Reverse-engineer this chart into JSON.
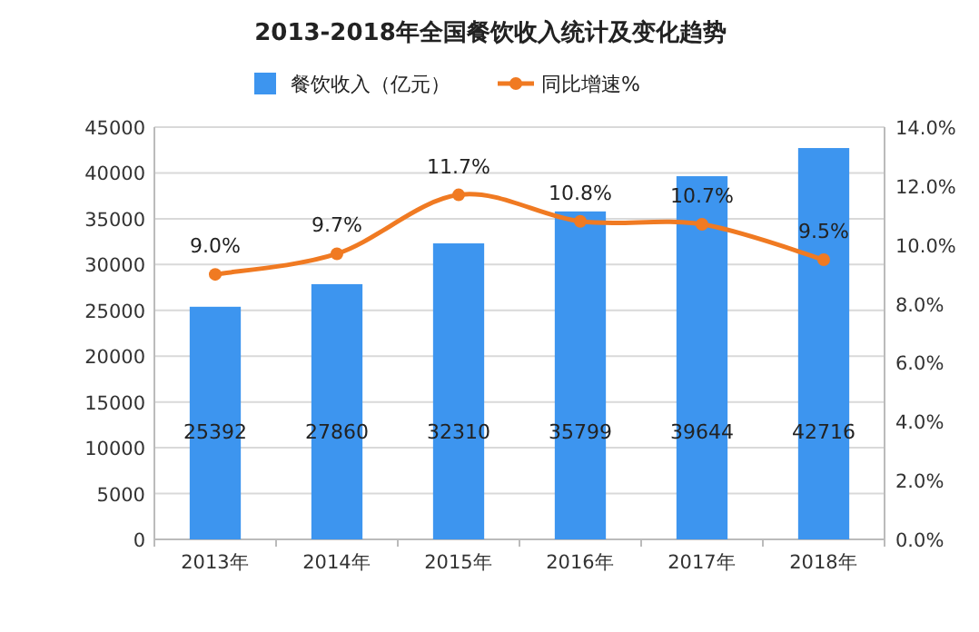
{
  "chart_data": {
    "type": "bar",
    "title": "2013-2018年全国餐饮收入统计及变化趋势",
    "categories": [
      "2013年",
      "2014年",
      "2015年",
      "2016年",
      "2017年",
      "2018年"
    ],
    "series": [
      {
        "name": "餐饮收入（亿元）",
        "color": "#3d95ef",
        "values": [
          25392,
          27860,
          32310,
          35799,
          39644,
          42716
        ],
        "value_labels": [
          "25392",
          "27860",
          "32310",
          "35799",
          "39644",
          "42716"
        ]
      },
      {
        "name": "同比增速%",
        "type": "line",
        "axis": "y2",
        "color": "#f07a22",
        "values": [
          9.0,
          9.7,
          11.7,
          10.8,
          10.7,
          9.5
        ],
        "value_labels": [
          "9.0%",
          "9.7%",
          "11.7%",
          "10.8%",
          "10.7%",
          "9.5%"
        ]
      }
    ],
    "ylim": [
      0,
      45000
    ],
    "yticks": [
      0,
      5000,
      10000,
      15000,
      20000,
      25000,
      30000,
      35000,
      40000,
      45000
    ],
    "y2lim": [
      0,
      14
    ],
    "y2ticks": [
      {
        "value": 0,
        "label": "0.0%"
      },
      {
        "value": 2,
        "label": "2.0%"
      },
      {
        "value": 4,
        "label": "4.0%"
      },
      {
        "value": 6,
        "label": "6.0%"
      },
      {
        "value": 8,
        "label": "8.0%"
      },
      {
        "value": 10,
        "label": "10.0%"
      },
      {
        "value": 12,
        "label": "12.0%"
      },
      {
        "value": 14,
        "label": "14.0%"
      }
    ],
    "grid": "y",
    "legend": "top",
    "marker": "circle"
  }
}
